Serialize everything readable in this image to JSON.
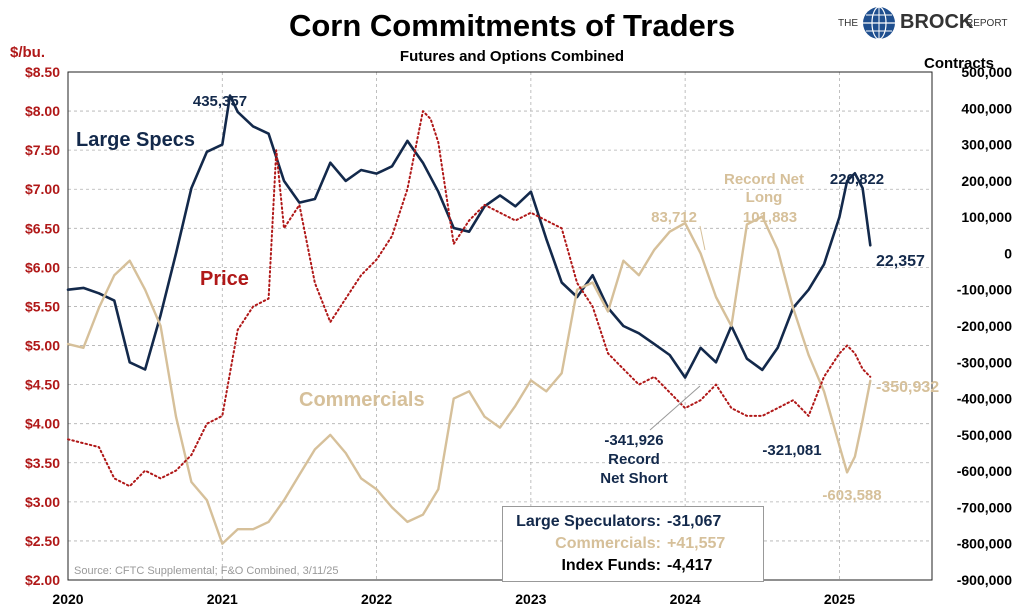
{
  "title": "Corn Commitments of Traders",
  "subtitle": "Futures and Options Combined",
  "left_unit": "$/bu.",
  "right_unit": "Contracts",
  "logo": {
    "the": "THE",
    "brock": "BROCK",
    "report": "REPORT"
  },
  "source": "Source: CFTC Supplemental; F&O Combined, 3/11/25",
  "colors": {
    "large_specs": "#13294b",
    "commercials": "#d6c09a",
    "price": "#b01818",
    "grid": "#b0b0b0"
  },
  "infobox": {
    "rows": [
      {
        "label": "Large Speculators:",
        "value": "-31,067"
      },
      {
        "label": "Commercials:",
        "value": "+41,557"
      },
      {
        "label": "Index Funds:",
        "value": "-4,417"
      }
    ]
  },
  "chart_data": {
    "type": "line",
    "x_ticks": [
      "2020",
      "2021",
      "2022",
      "2023",
      "2024",
      "2025"
    ],
    "left_axis": {
      "ticks": [
        "$8.50",
        "$8.00",
        "$7.50",
        "$7.00",
        "$6.50",
        "$6.00",
        "$5.50",
        "$5.00",
        "$4.50",
        "$4.00",
        "$3.50",
        "$3.00",
        "$2.50",
        "$2.00"
      ],
      "ylim": [
        2.0,
        8.5
      ]
    },
    "right_axis": {
      "ticks": [
        "500,000",
        "400,000",
        "300,000",
        "200,000",
        "100,000",
        "0",
        "-100,000",
        "-200,000",
        "-300,000",
        "-400,000",
        "-500,000",
        "-600,000",
        "-700,000",
        "-800,000",
        "-900,000"
      ],
      "ylim": [
        -900000,
        500000
      ]
    },
    "grid": true,
    "series": [
      {
        "name": "Large Specs",
        "axis": "right",
        "style": "solid",
        "x": [
          2020.0,
          2020.1,
          2020.2,
          2020.3,
          2020.4,
          2020.5,
          2020.6,
          2020.7,
          2020.8,
          2020.9,
          2021.0,
          2021.05,
          2021.1,
          2021.2,
          2021.3,
          2021.4,
          2021.5,
          2021.6,
          2021.7,
          2021.8,
          2021.9,
          2022.0,
          2022.1,
          2022.2,
          2022.3,
          2022.4,
          2022.5,
          2022.6,
          2022.7,
          2022.8,
          2022.9,
          2023.0,
          2023.1,
          2023.2,
          2023.3,
          2023.4,
          2023.5,
          2023.6,
          2023.7,
          2023.8,
          2023.9,
          2024.0,
          2024.1,
          2024.2,
          2024.3,
          2024.4,
          2024.5,
          2024.6,
          2024.7,
          2024.8,
          2024.9,
          2025.0,
          2025.05,
          2025.1,
          2025.15,
          2025.2
        ],
        "y": [
          -100000,
          -95000,
          -110000,
          -130000,
          -300000,
          -320000,
          -170000,
          0,
          180000,
          280000,
          300000,
          435357,
          390000,
          350000,
          330000,
          200000,
          140000,
          150000,
          250000,
          200000,
          230000,
          220000,
          240000,
          310000,
          250000,
          170000,
          70000,
          60000,
          130000,
          160000,
          130000,
          170000,
          40000,
          -80000,
          -120000,
          -60000,
          -150000,
          -200000,
          -220000,
          -250000,
          -280000,
          -341926,
          -260000,
          -300000,
          -200000,
          -290000,
          -321081,
          -260000,
          -150000,
          -100000,
          -30000,
          100000,
          200000,
          220822,
          180000,
          22357
        ]
      },
      {
        "name": "Commercials",
        "axis": "right",
        "style": "solid",
        "x": [
          2020.0,
          2020.1,
          2020.2,
          2020.3,
          2020.4,
          2020.5,
          2020.6,
          2020.7,
          2020.8,
          2020.9,
          2021.0,
          2021.1,
          2021.2,
          2021.3,
          2021.4,
          2021.5,
          2021.6,
          2021.7,
          2021.8,
          2021.9,
          2022.0,
          2022.1,
          2022.2,
          2022.3,
          2022.4,
          2022.5,
          2022.6,
          2022.7,
          2022.8,
          2022.9,
          2023.0,
          2023.1,
          2023.2,
          2023.3,
          2023.4,
          2023.5,
          2023.6,
          2023.7,
          2023.8,
          2023.9,
          2024.0,
          2024.1,
          2024.2,
          2024.3,
          2024.4,
          2024.5,
          2024.6,
          2024.7,
          2024.8,
          2024.9,
          2025.0,
          2025.05,
          2025.1,
          2025.15,
          2025.2
        ],
        "y": [
          -250000,
          -260000,
          -150000,
          -60000,
          -20000,
          -100000,
          -200000,
          -450000,
          -630000,
          -680000,
          -800000,
          -760000,
          -760000,
          -740000,
          -680000,
          -610000,
          -540000,
          -500000,
          -550000,
          -620000,
          -650000,
          -700000,
          -740000,
          -720000,
          -650000,
          -400000,
          -380000,
          -450000,
          -480000,
          -420000,
          -350000,
          -380000,
          -330000,
          -100000,
          -80000,
          -160000,
          -20000,
          -60000,
          10000,
          60000,
          83712,
          0,
          -120000,
          -200000,
          80000,
          101883,
          10000,
          -150000,
          -280000,
          -380000,
          -530000,
          -603588,
          -560000,
          -460000,
          -350932
        ]
      },
      {
        "name": "Price",
        "axis": "left",
        "style": "dotted",
        "x": [
          2020.0,
          2020.1,
          2020.2,
          2020.3,
          2020.4,
          2020.5,
          2020.6,
          2020.7,
          2020.8,
          2020.9,
          2021.0,
          2021.1,
          2021.2,
          2021.3,
          2021.35,
          2021.4,
          2021.5,
          2021.6,
          2021.7,
          2021.8,
          2021.9,
          2022.0,
          2022.1,
          2022.2,
          2022.3,
          2022.35,
          2022.4,
          2022.5,
          2022.6,
          2022.7,
          2022.8,
          2022.9,
          2023.0,
          2023.1,
          2023.2,
          2023.3,
          2023.4,
          2023.5,
          2023.6,
          2023.7,
          2023.8,
          2023.9,
          2024.0,
          2024.1,
          2024.2,
          2024.3,
          2024.4,
          2024.5,
          2024.6,
          2024.7,
          2024.8,
          2024.9,
          2025.0,
          2025.05,
          2025.1,
          2025.15,
          2025.2
        ],
        "y": [
          3.8,
          3.75,
          3.7,
          3.3,
          3.2,
          3.4,
          3.3,
          3.4,
          3.6,
          4.0,
          4.1,
          5.2,
          5.5,
          5.6,
          7.5,
          6.5,
          6.8,
          5.8,
          5.3,
          5.6,
          5.9,
          6.1,
          6.4,
          7.0,
          8.0,
          7.9,
          7.6,
          6.3,
          6.6,
          6.8,
          6.7,
          6.6,
          6.7,
          6.6,
          6.5,
          5.8,
          5.5,
          4.9,
          4.7,
          4.5,
          4.6,
          4.4,
          4.2,
          4.3,
          4.5,
          4.2,
          4.1,
          4.1,
          4.2,
          4.3,
          4.1,
          4.6,
          4.9,
          5.0,
          4.9,
          4.7,
          4.6
        ]
      }
    ],
    "annotations": [
      {
        "text": "435,357",
        "color": "large_specs"
      },
      {
        "text": "Large Specs",
        "color": "large_specs"
      },
      {
        "text": "Price",
        "color": "price"
      },
      {
        "text": "Commercials",
        "color": "commercials"
      },
      {
        "text": "83,712",
        "color": "commercials"
      },
      {
        "text": "Record Net",
        "color": "commercials"
      },
      {
        "text": "Long",
        "color": "commercials"
      },
      {
        "text": "101,883",
        "color": "commercials"
      },
      {
        "text": "220,822",
        "color": "large_specs"
      },
      {
        "text": "22,357",
        "color": "large_specs"
      },
      {
        "text": "-341,926",
        "color": "large_specs"
      },
      {
        "text": "Record",
        "color": "large_specs"
      },
      {
        "text": "Net Short",
        "color": "large_specs"
      },
      {
        "text": "-321,081",
        "color": "large_specs"
      },
      {
        "text": "-350,932",
        "color": "commercials"
      },
      {
        "text": "-603,588",
        "color": "commercials"
      }
    ]
  }
}
